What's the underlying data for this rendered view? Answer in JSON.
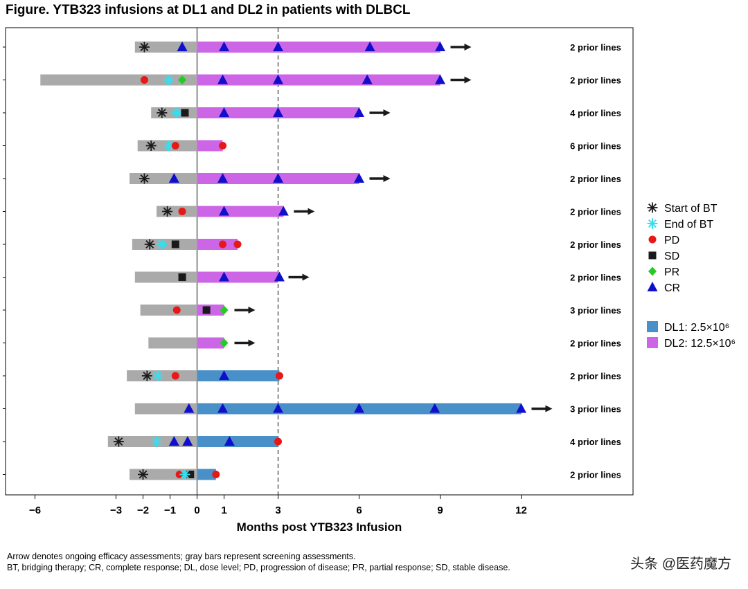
{
  "title": "Figure. YTB323 infusions at DL1 and DL2 in patients with DLBCL",
  "footnotes": [
    "Arrow denotes ongoing efficacy assessments; gray bars represent screening assessments.",
    "BT, bridging therapy; CR, complete response; DL, dose level; PD, progression of disease; PR, partial response; SD, stable disease."
  ],
  "watermark": "头条 @医药魔方",
  "colors": {
    "screening": "#aaaaaa",
    "dl1": "#4a90c8",
    "dl2": "#cc66e6",
    "start_bt": "#1a1a1a",
    "end_bt": "#33e0f0",
    "pd": "#e81818",
    "sd": "#1a1a1a",
    "pr": "#22cc22",
    "cr": "#1010cc",
    "arrow": "#1a1a1a"
  },
  "chart_data": {
    "type": "swimmer",
    "xlabel": "Months post YTB323 Infusion",
    "xlim": [
      -6.6,
      13.2
    ],
    "xticks": [
      -6,
      -3,
      -2,
      -1,
      0,
      1,
      3,
      6,
      9,
      12
    ],
    "vlines": [
      {
        "x": 0,
        "style": "solid"
      },
      {
        "x": 3,
        "style": "dashed"
      }
    ],
    "legend": {
      "markers": [
        {
          "key": "start_bt",
          "label": "Start of BT",
          "shape": "asterisk"
        },
        {
          "key": "end_bt",
          "label": "End of BT",
          "shape": "asterisk"
        },
        {
          "key": "pd",
          "label": "PD",
          "shape": "circle"
        },
        {
          "key": "sd",
          "label": "SD",
          "shape": "square"
        },
        {
          "key": "pr",
          "label": "PR",
          "shape": "diamond"
        },
        {
          "key": "cr",
          "label": "CR",
          "shape": "triangle"
        }
      ],
      "dose_levels": [
        {
          "key": "dl1",
          "label": "DL1: 2.5×10⁶"
        },
        {
          "key": "dl2",
          "label": "DL2: 12.5×10⁶"
        }
      ]
    },
    "patients": [
      {
        "prior_lines": "2 prior lines",
        "screen_start": -2.3,
        "dose": "dl2",
        "bar_end": 9.0,
        "ongoing": true,
        "events": [
          {
            "type": "start_bt",
            "x": -1.95
          },
          {
            "type": "cr",
            "x": -0.55
          },
          {
            "type": "cr",
            "x": 1.0
          },
          {
            "type": "cr",
            "x": 3.0
          },
          {
            "type": "cr",
            "x": 6.4
          },
          {
            "type": "cr",
            "x": 9.0
          }
        ]
      },
      {
        "prior_lines": "2 prior lines",
        "screen_start": -5.8,
        "dose": "dl2",
        "bar_end": 9.0,
        "ongoing": true,
        "events": [
          {
            "type": "pd",
            "x": -1.95
          },
          {
            "type": "end_bt",
            "x": -1.05
          },
          {
            "type": "pr",
            "x": -0.55
          },
          {
            "type": "cr",
            "x": 0.95
          },
          {
            "type": "cr",
            "x": 3.0
          },
          {
            "type": "cr",
            "x": 6.3
          },
          {
            "type": "cr",
            "x": 9.0
          }
        ]
      },
      {
        "prior_lines": "4 prior lines",
        "screen_start": -1.7,
        "dose": "dl2",
        "bar_end": 6.0,
        "ongoing": true,
        "events": [
          {
            "type": "start_bt",
            "x": -1.3
          },
          {
            "type": "end_bt",
            "x": -0.75
          },
          {
            "type": "sd",
            "x": -0.45
          },
          {
            "type": "cr",
            "x": 1.0
          },
          {
            "type": "cr",
            "x": 3.0
          },
          {
            "type": "cr",
            "x": 6.0
          }
        ]
      },
      {
        "prior_lines": "6 prior lines",
        "screen_start": -2.2,
        "dose": "dl2",
        "bar_end": 0.95,
        "ongoing": false,
        "events": [
          {
            "type": "start_bt",
            "x": -1.7
          },
          {
            "type": "end_bt",
            "x": -1.05
          },
          {
            "type": "pd",
            "x": -0.8
          },
          {
            "type": "pd",
            "x": 0.95
          }
        ]
      },
      {
        "prior_lines": "2 prior lines",
        "screen_start": -2.5,
        "dose": "dl2",
        "bar_end": 6.0,
        "ongoing": true,
        "events": [
          {
            "type": "start_bt",
            "x": -1.95
          },
          {
            "type": "cr",
            "x": -0.85
          },
          {
            "type": "cr",
            "x": 0.95
          },
          {
            "type": "cr",
            "x": 3.0
          },
          {
            "type": "cr",
            "x": 6.0
          }
        ]
      },
      {
        "prior_lines": "2 prior lines",
        "screen_start": -1.5,
        "dose": "dl2",
        "bar_end": 3.2,
        "ongoing": true,
        "events": [
          {
            "type": "start_bt",
            "x": -1.1
          },
          {
            "type": "pd",
            "x": -0.55
          },
          {
            "type": "cr",
            "x": 1.0
          },
          {
            "type": "cr",
            "x": 3.2
          }
        ]
      },
      {
        "prior_lines": "2 prior lines",
        "screen_start": -2.4,
        "dose": "dl2",
        "bar_end": 1.5,
        "ongoing": false,
        "events": [
          {
            "type": "start_bt",
            "x": -1.75
          },
          {
            "type": "end_bt",
            "x": -1.3
          },
          {
            "type": "sd",
            "x": -0.8
          },
          {
            "type": "pd",
            "x": 0.95
          },
          {
            "type": "pd",
            "x": 1.5
          }
        ]
      },
      {
        "prior_lines": "2 prior lines",
        "screen_start": -2.3,
        "dose": "dl2",
        "bar_end": 3.0,
        "ongoing": true,
        "events": [
          {
            "type": "sd",
            "x": -0.55
          },
          {
            "type": "cr",
            "x": 1.0
          },
          {
            "type": "cr",
            "x": 3.05
          }
        ]
      },
      {
        "prior_lines": "3 prior lines",
        "screen_start": -2.1,
        "dose": "dl2",
        "bar_end": 1.0,
        "ongoing": true,
        "events": [
          {
            "type": "pd",
            "x": -0.75
          },
          {
            "type": "sd",
            "x": 0.35
          },
          {
            "type": "pr",
            "x": 1.0
          }
        ]
      },
      {
        "prior_lines": "2 prior lines",
        "screen_start": -1.8,
        "dose": "dl2",
        "bar_end": 1.0,
        "ongoing": true,
        "events": [
          {
            "type": "pr",
            "x": 1.0
          }
        ]
      },
      {
        "prior_lines": "2 prior lines",
        "screen_start": -2.6,
        "dose": "dl1",
        "bar_end": 3.05,
        "ongoing": false,
        "events": [
          {
            "type": "start_bt",
            "x": -1.85
          },
          {
            "type": "end_bt",
            "x": -1.45
          },
          {
            "type": "pd",
            "x": -0.8
          },
          {
            "type": "cr",
            "x": 1.0
          },
          {
            "type": "pd",
            "x": 3.05
          }
        ]
      },
      {
        "prior_lines": "3 prior lines",
        "screen_start": -2.3,
        "dose": "dl1",
        "bar_end": 12.0,
        "ongoing": true,
        "events": [
          {
            "type": "cr",
            "x": -0.3
          },
          {
            "type": "cr",
            "x": 0.95
          },
          {
            "type": "cr",
            "x": 3.0
          },
          {
            "type": "cr",
            "x": 6.0
          },
          {
            "type": "cr",
            "x": 8.8
          },
          {
            "type": "cr",
            "x": 12.0
          }
        ]
      },
      {
        "prior_lines": "4 prior lines",
        "screen_start": -3.3,
        "dose": "dl1",
        "bar_end": 3.0,
        "ongoing": false,
        "events": [
          {
            "type": "start_bt",
            "x": -2.9
          },
          {
            "type": "end_bt",
            "x": -1.5
          },
          {
            "type": "cr",
            "x": -0.85
          },
          {
            "type": "cr",
            "x": -0.35
          },
          {
            "type": "cr",
            "x": 1.2
          },
          {
            "type": "pd",
            "x": 3.0
          }
        ]
      },
      {
        "prior_lines": "2 prior lines",
        "screen_start": -2.5,
        "dose": "dl1",
        "bar_end": 0.7,
        "ongoing": false,
        "events": [
          {
            "type": "start_bt",
            "x": -2.0
          },
          {
            "type": "pd",
            "x": -0.65
          },
          {
            "type": "sd",
            "x": -0.25
          },
          {
            "type": "end_bt",
            "x": -0.45
          },
          {
            "type": "pd",
            "x": 0.7
          }
        ]
      }
    ]
  }
}
